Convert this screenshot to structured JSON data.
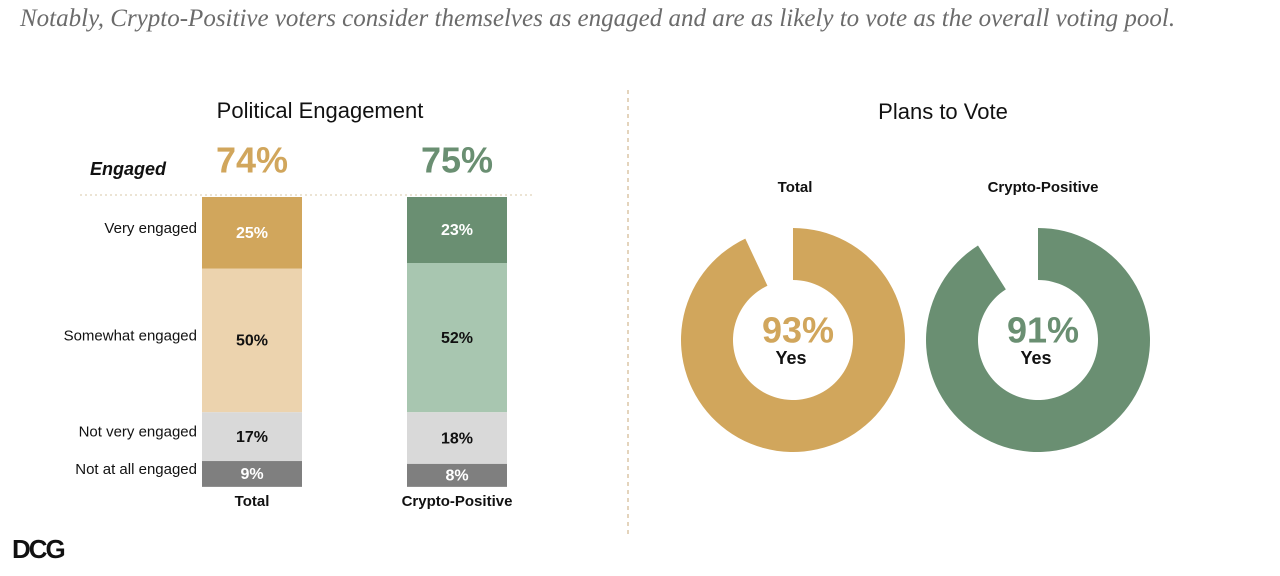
{
  "headline": "Notably, Crypto-Positive voters consider themselves as engaged and are as likely to vote as the overall voting pool.",
  "logo": "DCG",
  "chart_data": [
    {
      "type": "stacked-bar",
      "title": "Political Engagement",
      "categories": [
        "Total",
        "Crypto-Positive"
      ],
      "summary": {
        "label": "Engaged",
        "values": [
          74,
          75
        ],
        "value_labels": [
          "74%",
          "75%"
        ],
        "colors": [
          "#d1a65c",
          "#6a8f72"
        ]
      },
      "series": [
        {
          "name": "Very engaged",
          "colors": [
            "#d1a65c",
            "#6a8f72"
          ],
          "label_color": "#ffffff",
          "values": [
            25,
            23
          ],
          "value_labels": [
            "25%",
            "23%"
          ]
        },
        {
          "name": "Somewhat engaged",
          "colors": [
            "#ecd3ae",
            "#a8c6b0"
          ],
          "label_color": "#111111",
          "values": [
            50,
            52
          ],
          "value_labels": [
            "50%",
            "52%"
          ]
        },
        {
          "name": "Not very engaged",
          "colors": [
            "#d9d9d9",
            "#d9d9d9"
          ],
          "label_color": "#111111",
          "values": [
            17,
            18
          ],
          "value_labels": [
            "17%",
            "18%"
          ]
        },
        {
          "name": "Not at all engaged",
          "colors": [
            "#7f7f7f",
            "#7f7f7f"
          ],
          "label_color": "#ffffff",
          "values": [
            9,
            8
          ],
          "value_labels": [
            "9%",
            "8%"
          ]
        }
      ]
    },
    {
      "type": "donut",
      "title": "Plans to Vote",
      "categories": [
        "Total",
        "Crypto-Positive"
      ],
      "values": [
        93,
        91
      ],
      "value_labels": [
        "93%",
        "91%"
      ],
      "colors": [
        "#d1a65c",
        "#6a8f72"
      ],
      "center_label": "Yes"
    }
  ]
}
